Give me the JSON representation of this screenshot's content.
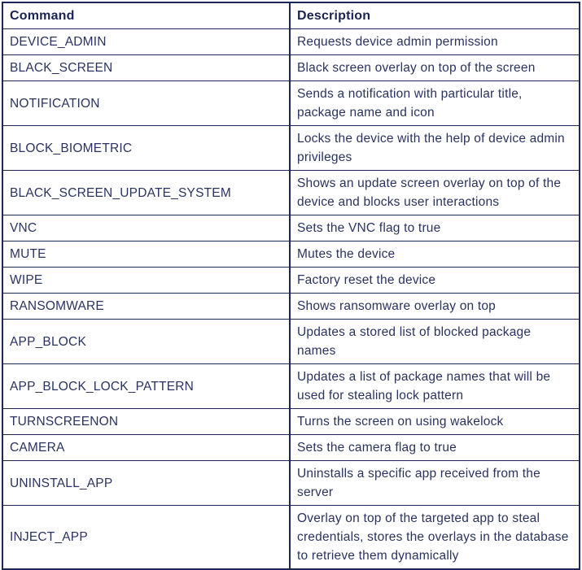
{
  "colors": {
    "text": "#2a3360",
    "header_text": "#1b2451",
    "border": "#1e2856",
    "background": "#ffffff"
  },
  "table": {
    "columns": [
      {
        "label": "Command"
      },
      {
        "label": "Description"
      }
    ],
    "rows": [
      {
        "command": "DEVICE_ADMIN",
        "description": "Requests device admin permission"
      },
      {
        "command": "BLACK_SCREEN",
        "description": "Black screen overlay on top of the screen"
      },
      {
        "command": "NOTIFICATION",
        "description": "Sends a notification with particular title, package name and icon"
      },
      {
        "command": "BLOCK_BIOMETRIC",
        "description": "Locks the device with the help of device admin privileges"
      },
      {
        "command": "BLACK_SCREEN_UPDATE_SYSTEM",
        "description": "Shows an update screen overlay on top of the device and blocks user interactions"
      },
      {
        "command": "VNC",
        "description": "Sets the VNC flag to true"
      },
      {
        "command": "MUTE",
        "description": "Mutes the device"
      },
      {
        "command": "WIPE",
        "description": "Factory reset the device"
      },
      {
        "command": "RANSOMWARE",
        "description": "Shows ransomware overlay on top"
      },
      {
        "command": "APP_BLOCK",
        "description": "Updates a stored list of blocked package names"
      },
      {
        "command": "APP_BLOCK_LOCK_PATTERN",
        "description": "Updates a list of package names that will be used for stealing lock pattern"
      },
      {
        "command": "TURNSCREENON",
        "description": "Turns the screen on using wakelock"
      },
      {
        "command": "CAMERA",
        "description": "Sets the camera flag to true"
      },
      {
        "command": "UNINSTALL_APP",
        "description": "Uninstalls a specific app received from the server"
      },
      {
        "command": "INJECT_APP",
        "description": "Overlay on top of the targeted app to steal credentials, stores the overlays in the database to retrieve them dynamically"
      }
    ]
  }
}
